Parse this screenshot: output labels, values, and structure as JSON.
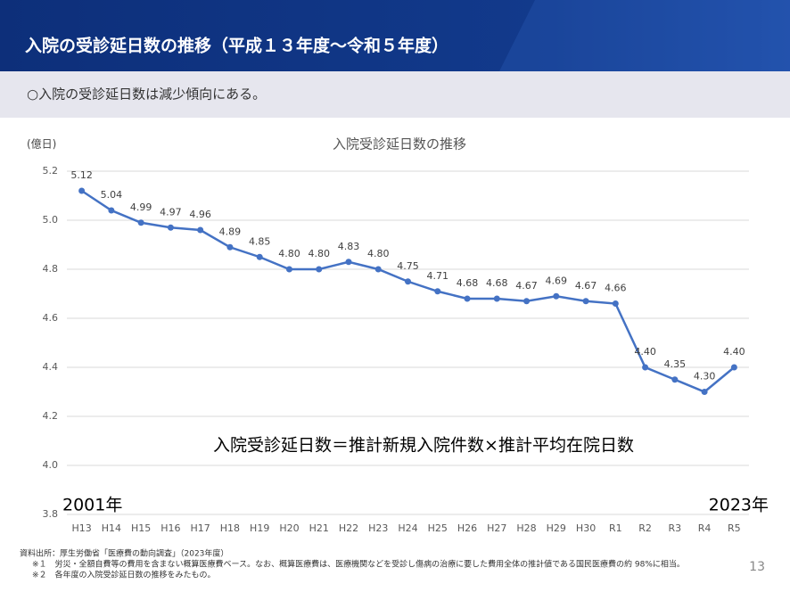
{
  "header": {
    "title": "入院の受診延日数の推移（平成１３年度～令和５年度）"
  },
  "summary": "○入院の受診延日数は減少傾向にある。",
  "chart_data": {
    "type": "line",
    "title": "入院受診延日数の推移",
    "y_label": "(億日)",
    "categories": [
      "H13",
      "H14",
      "H15",
      "H16",
      "H17",
      "H18",
      "H19",
      "H20",
      "H21",
      "H22",
      "H23",
      "H24",
      "H25",
      "H26",
      "H27",
      "H28",
      "H29",
      "H30",
      "R1",
      "R2",
      "R3",
      "R4",
      "R5"
    ],
    "values": [
      5.12,
      5.04,
      4.99,
      4.97,
      4.96,
      4.89,
      4.85,
      4.8,
      4.8,
      4.83,
      4.8,
      4.75,
      4.71,
      4.68,
      4.68,
      4.67,
      4.69,
      4.67,
      4.66,
      4.4,
      4.35,
      4.3,
      4.4
    ],
    "value_labels": [
      "5.12",
      "5.04",
      "4.99",
      "4.97",
      "4.96",
      "4.89",
      "4.85",
      "4.80",
      "4.80",
      "4.83",
      "4.80",
      "4.75",
      "4.71",
      "4.68",
      "4.68",
      "4.67",
      "4.69",
      "4.67",
      "4.66",
      "4.40",
      "4.35",
      "4.30",
      "4.40"
    ],
    "color": "#4472c4",
    "ylim": [
      3.8,
      5.2
    ],
    "yticks": [
      5.2,
      {
        "value": 5,
        "label": "5.0"
      },
      4.8,
      4.6,
      4.4,
      4.2,
      {
        "value": 4,
        "label": "4.0"
      },
      3.8
    ],
    "grid": true,
    "annotations": [
      "入院受診延日数＝推計新規入院件数×推計平均在院日数",
      "2001年",
      "2023年"
    ]
  },
  "footer": {
    "source": "資料出所：厚生労働省「医療費の動向調査」（2023年度）",
    "notes": [
      "※１　労災・全額自費等の費用を含まない概算医療費ベース。なお、概算医療費は、医療機関などを受診し傷病の治療に要した費用全体の推計値である国民医療費の約 98%に相当。",
      "※２　各年度の入院受診延日数の推移をみたもの。"
    ],
    "page": "13"
  }
}
